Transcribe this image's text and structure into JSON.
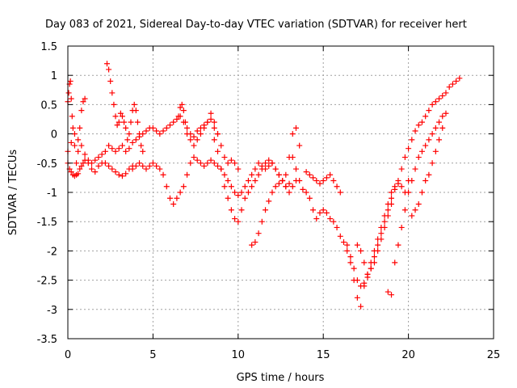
{
  "chart_data": {
    "type": "scatter",
    "title": "Day 083 of 2021, Sidereal Day-to-day VTEC variation (SDTVAR) for receiver hert",
    "xlabel": "GPS time / hours",
    "ylabel": "SDTVAR / TECUs",
    "xlim": [
      0,
      25
    ],
    "ylim": [
      -3.5,
      1.5
    ],
    "xticks": [
      0,
      5,
      10,
      15,
      20,
      25
    ],
    "xtick_labels": [
      "0",
      "5",
      "10",
      "15",
      "20",
      "25"
    ],
    "yticks": [
      -3.5,
      -3,
      -2.5,
      -2,
      -1.5,
      -1,
      -0.5,
      0,
      0.5,
      1,
      1.5
    ],
    "ytick_labels": [
      "-3.5",
      "-3",
      "-2.5",
      "-2",
      "-1.5",
      "-1",
      "-0.5",
      "0",
      "0.5",
      "1",
      "1.5"
    ],
    "grid": true,
    "marker": "+",
    "colors": {
      "series": "#ff0000",
      "grid": "#a0a0a0",
      "axis": "#000000"
    },
    "series": [
      {
        "x": [
          0.0,
          0.1,
          0.2,
          0.3,
          0.4,
          0.5,
          0.6,
          0.7,
          0.8,
          0.9,
          1.0,
          1.2,
          1.4,
          1.6,
          1.8,
          2.0,
          2.2,
          2.4,
          2.6,
          2.8,
          3.0,
          3.2,
          3.4,
          3.6,
          3.8
        ],
        "y": [
          -0.5,
          -0.6,
          -0.65,
          -0.7,
          -0.72,
          -0.7,
          -0.68,
          -0.6,
          -0.55,
          -0.5,
          -0.45,
          -0.5,
          -0.6,
          -0.65,
          -0.55,
          -0.5,
          -0.5,
          -0.55,
          -0.6,
          -0.65,
          -0.7,
          -0.72,
          -0.68,
          -0.6,
          -0.55
        ]
      },
      {
        "x": [
          0.0,
          0.05,
          0.1,
          0.15,
          0.2,
          0.25,
          0.3,
          0.4,
          0.5,
          0.6,
          0.7,
          0.8,
          0.9,
          1.0
        ],
        "y": [
          0.55,
          0.7,
          0.85,
          0.9,
          0.6,
          0.3,
          0.1,
          -0.2,
          -0.5,
          -0.3,
          0.1,
          0.4,
          0.55,
          0.6
        ]
      },
      {
        "x": [
          0.0,
          0.2,
          0.4,
          0.6,
          0.8,
          1.0,
          1.2,
          1.4,
          1.6,
          1.8,
          2.0,
          2.2,
          2.4,
          2.6,
          2.8,
          3.0,
          3.2,
          3.4,
          3.6,
          3.8,
          4.0,
          4.2,
          4.4,
          4.6,
          4.8,
          5.0,
          5.2,
          5.4,
          5.6,
          5.8,
          6.0,
          6.2,
          6.4,
          6.6,
          6.8,
          7.0,
          7.2,
          7.4,
          7.6,
          7.8,
          8.0,
          8.2,
          8.4,
          8.6,
          8.8
        ],
        "y": [
          -0.3,
          -0.15,
          0.0,
          -0.1,
          -0.2,
          -0.35,
          -0.45,
          -0.5,
          -0.45,
          -0.4,
          -0.35,
          -0.3,
          -0.2,
          -0.25,
          -0.3,
          -0.25,
          -0.2,
          -0.3,
          -0.25,
          -0.15,
          -0.1,
          -0.05,
          0.0,
          0.05,
          0.1,
          0.1,
          0.05,
          0.0,
          0.05,
          0.1,
          0.15,
          0.2,
          0.25,
          0.3,
          0.2,
          0.1,
          0.0,
          -0.05,
          0.05,
          0.1,
          0.15,
          0.2,
          0.25,
          0.1,
          0.0
        ]
      },
      {
        "x": [
          2.3,
          2.4,
          2.5,
          2.6,
          2.7,
          2.8,
          2.9,
          3.0,
          3.1,
          3.2,
          3.3,
          3.4,
          3.5,
          3.6,
          3.7,
          3.8,
          3.9,
          4.0,
          4.1,
          4.2,
          4.3,
          4.4
        ],
        "y": [
          1.2,
          1.1,
          0.9,
          0.7,
          0.5,
          0.3,
          0.15,
          0.2,
          0.35,
          0.3,
          0.2,
          0.1,
          -0.1,
          0.0,
          0.2,
          0.4,
          0.5,
          0.4,
          0.2,
          0.0,
          -0.2,
          -0.3
        ]
      },
      {
        "x": [
          3.8,
          4.0,
          4.2,
          4.4,
          4.6,
          4.8,
          5.0,
          5.2,
          5.4,
          5.6,
          5.8,
          6.0,
          6.2,
          6.4,
          6.6,
          6.8,
          7.0,
          7.2,
          7.4,
          7.6,
          7.8,
          8.0,
          8.2,
          8.4,
          8.6,
          8.8,
          9.0,
          9.2,
          9.4,
          9.6,
          9.8,
          10.0,
          10.2,
          10.4,
          10.6,
          10.8,
          11.0,
          11.2,
          11.4,
          11.6,
          11.8,
          12.0,
          12.2,
          12.4,
          12.6,
          12.8,
          13.0
        ],
        "y": [
          -0.6,
          -0.55,
          -0.5,
          -0.55,
          -0.6,
          -0.55,
          -0.5,
          -0.55,
          -0.6,
          -0.7,
          -0.9,
          -1.1,
          -1.2,
          -1.1,
          -1.0,
          -0.9,
          -0.7,
          -0.5,
          -0.4,
          -0.45,
          -0.5,
          -0.55,
          -0.5,
          -0.45,
          -0.5,
          -0.55,
          -0.6,
          -0.7,
          -0.8,
          -0.9,
          -1.0,
          -1.05,
          -1.0,
          -0.9,
          -0.8,
          -0.7,
          -0.6,
          -0.5,
          -0.55,
          -0.6,
          -0.55,
          -0.5,
          -0.6,
          -0.7,
          -0.8,
          -0.9,
          -0.85
        ]
      },
      {
        "x": [
          6.5,
          6.6,
          6.7,
          6.8,
          6.9,
          7.0,
          7.2,
          7.4,
          7.6,
          7.8,
          8.0,
          8.2,
          8.4,
          8.6,
          8.8,
          9.0,
          9.2,
          9.4,
          9.6,
          9.8,
          10.0
        ],
        "y": [
          0.3,
          0.45,
          0.5,
          0.4,
          0.2,
          0.0,
          -0.1,
          -0.2,
          -0.1,
          0.0,
          0.1,
          0.2,
          0.35,
          0.2,
          0.0,
          -0.2,
          -0.4,
          -0.5,
          -0.45,
          -0.5,
          -0.6
        ]
      },
      {
        "x": [
          8.6,
          8.8,
          9.0,
          9.2,
          9.4,
          9.6,
          9.8,
          10.0,
          10.2,
          10.4,
          10.6,
          10.8,
          11.0,
          11.2,
          11.4,
          11.6,
          11.8,
          12.0,
          12.2,
          12.4,
          12.6,
          12.8,
          13.0,
          13.2,
          13.4,
          13.6
        ],
        "y": [
          -0.1,
          -0.3,
          -0.6,
          -0.9,
          -1.1,
          -1.3,
          -1.45,
          -1.5,
          -1.3,
          -1.1,
          -1.0,
          -0.9,
          -0.8,
          -0.7,
          -0.6,
          -0.5,
          -0.45,
          -0.5,
          -0.6,
          -0.7,
          -0.8,
          -0.7,
          -0.4,
          0.0,
          0.1,
          -0.2
        ]
      },
      {
        "x": [
          10.8,
          11.0,
          11.2,
          11.4,
          11.6,
          11.8,
          12.0,
          12.2,
          12.4,
          12.6,
          12.8,
          13.0,
          13.2,
          13.4
        ],
        "y": [
          -1.9,
          -1.85,
          -1.7,
          -1.5,
          -1.3,
          -1.15,
          -1.0,
          -0.9,
          -0.85,
          -0.8,
          -0.9,
          -1.0,
          -0.9,
          -0.8
        ]
      },
      {
        "x": [
          13.2,
          13.4,
          13.6,
          13.8,
          14.0,
          14.2,
          14.4,
          14.6,
          14.8,
          15.0,
          15.2,
          15.4,
          15.6,
          15.8,
          16.0,
          16.2,
          16.4,
          16.6,
          16.8,
          17.0,
          17.2,
          17.4,
          17.6,
          17.8,
          18.0,
          18.2,
          18.4,
          18.6,
          18.8,
          19.0
        ],
        "y": [
          -0.4,
          -0.6,
          -0.8,
          -0.95,
          -1.0,
          -1.1,
          -1.3,
          -1.45,
          -1.35,
          -1.3,
          -1.35,
          -1.45,
          -1.5,
          -1.6,
          -1.75,
          -1.85,
          -2.0,
          -2.2,
          -2.5,
          -2.8,
          -2.95,
          -2.6,
          -2.4,
          -2.3,
          -2.2,
          -2.0,
          -1.8,
          -1.6,
          -1.4,
          -1.2
        ]
      },
      {
        "x": [
          14.0,
          14.2,
          14.4,
          14.6,
          14.8,
          15.0,
          15.2,
          15.4,
          15.6,
          15.8,
          16.0
        ],
        "y": [
          -0.65,
          -0.7,
          -0.75,
          -0.8,
          -0.85,
          -0.8,
          -0.75,
          -0.7,
          -0.8,
          -0.9,
          -1.0
        ]
      },
      {
        "x": [
          16.4,
          16.6,
          16.8,
          17.0,
          17.2,
          17.4,
          17.6,
          17.8,
          18.0,
          18.2,
          18.4,
          18.6,
          18.8,
          19.0,
          19.2,
          19.4,
          19.6,
          19.8,
          20.0,
          20.2,
          20.4,
          20.6,
          20.8,
          21.0,
          21.2,
          21.4,
          21.6,
          21.8,
          22.0,
          22.2,
          22.4,
          22.6,
          22.8,
          23.0
        ],
        "y": [
          -1.9,
          -2.1,
          -2.3,
          -2.5,
          -2.6,
          -2.55,
          -2.45,
          -2.3,
          -2.1,
          -1.9,
          -1.7,
          -1.5,
          -1.3,
          -1.1,
          -0.95,
          -0.8,
          -0.6,
          -0.4,
          -0.25,
          -0.1,
          0.05,
          0.15,
          0.2,
          0.3,
          0.4,
          0.5,
          0.55,
          0.6,
          0.65,
          0.7,
          0.8,
          0.85,
          0.9,
          0.95
        ]
      },
      {
        "x": [
          18.8,
          19.0,
          19.2,
          19.4,
          19.6,
          19.8,
          20.0,
          20.2,
          20.4,
          20.6,
          20.8,
          21.0,
          21.2,
          21.4,
          21.6,
          21.8,
          22.0,
          22.2
        ],
        "y": [
          -2.7,
          -2.75,
          -2.2,
          -1.9,
          -1.6,
          -1.3,
          -1.0,
          -0.8,
          -0.6,
          -0.4,
          -0.3,
          -0.2,
          -0.1,
          0.0,
          0.1,
          0.2,
          0.3,
          0.35
        ]
      },
      {
        "x": [
          20.2,
          20.4,
          20.6,
          20.8,
          21.0,
          21.2,
          21.4,
          21.6,
          21.8,
          22.0
        ],
        "y": [
          -1.4,
          -1.3,
          -1.2,
          -1.0,
          -0.8,
          -0.7,
          -0.5,
          -0.3,
          -0.1,
          0.1
        ]
      },
      {
        "x": [
          17.0,
          17.2,
          17.4,
          17.6,
          17.8,
          18.0,
          18.2,
          18.4,
          18.6,
          18.8,
          19.0,
          19.2,
          19.4,
          19.6,
          19.8,
          20.0
        ],
        "y": [
          -1.9,
          -2.0,
          -2.2,
          -2.4,
          -2.2,
          -2.0,
          -1.8,
          -1.6,
          -1.4,
          -1.2,
          -1.0,
          -0.9,
          -0.85,
          -0.9,
          -1.0,
          -0.8
        ]
      }
    ]
  }
}
